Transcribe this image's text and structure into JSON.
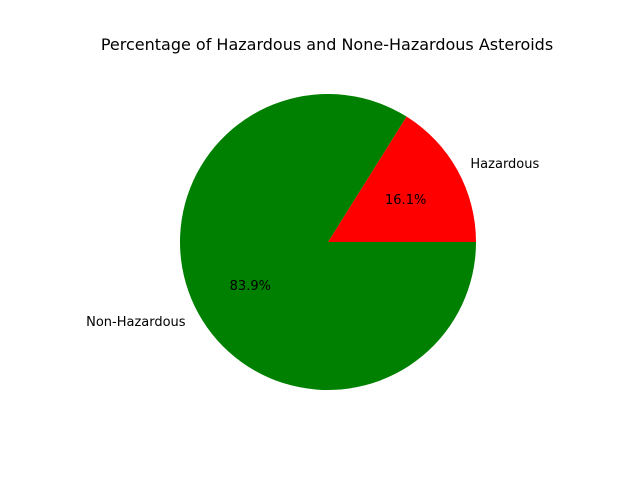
{
  "chart_data": {
    "type": "pie",
    "title": "Percentage of Hazardous and None-Hazardous Asteroids",
    "labels": [
      "Hazardous",
      "Non-Hazardous"
    ],
    "values": [
      16.1,
      83.9
    ],
    "percent_labels": [
      "16.1%",
      "83.9%"
    ],
    "colors": [
      "#ff0000",
      "#008000"
    ],
    "start_angle": 0,
    "direction": "counterclockwise"
  }
}
